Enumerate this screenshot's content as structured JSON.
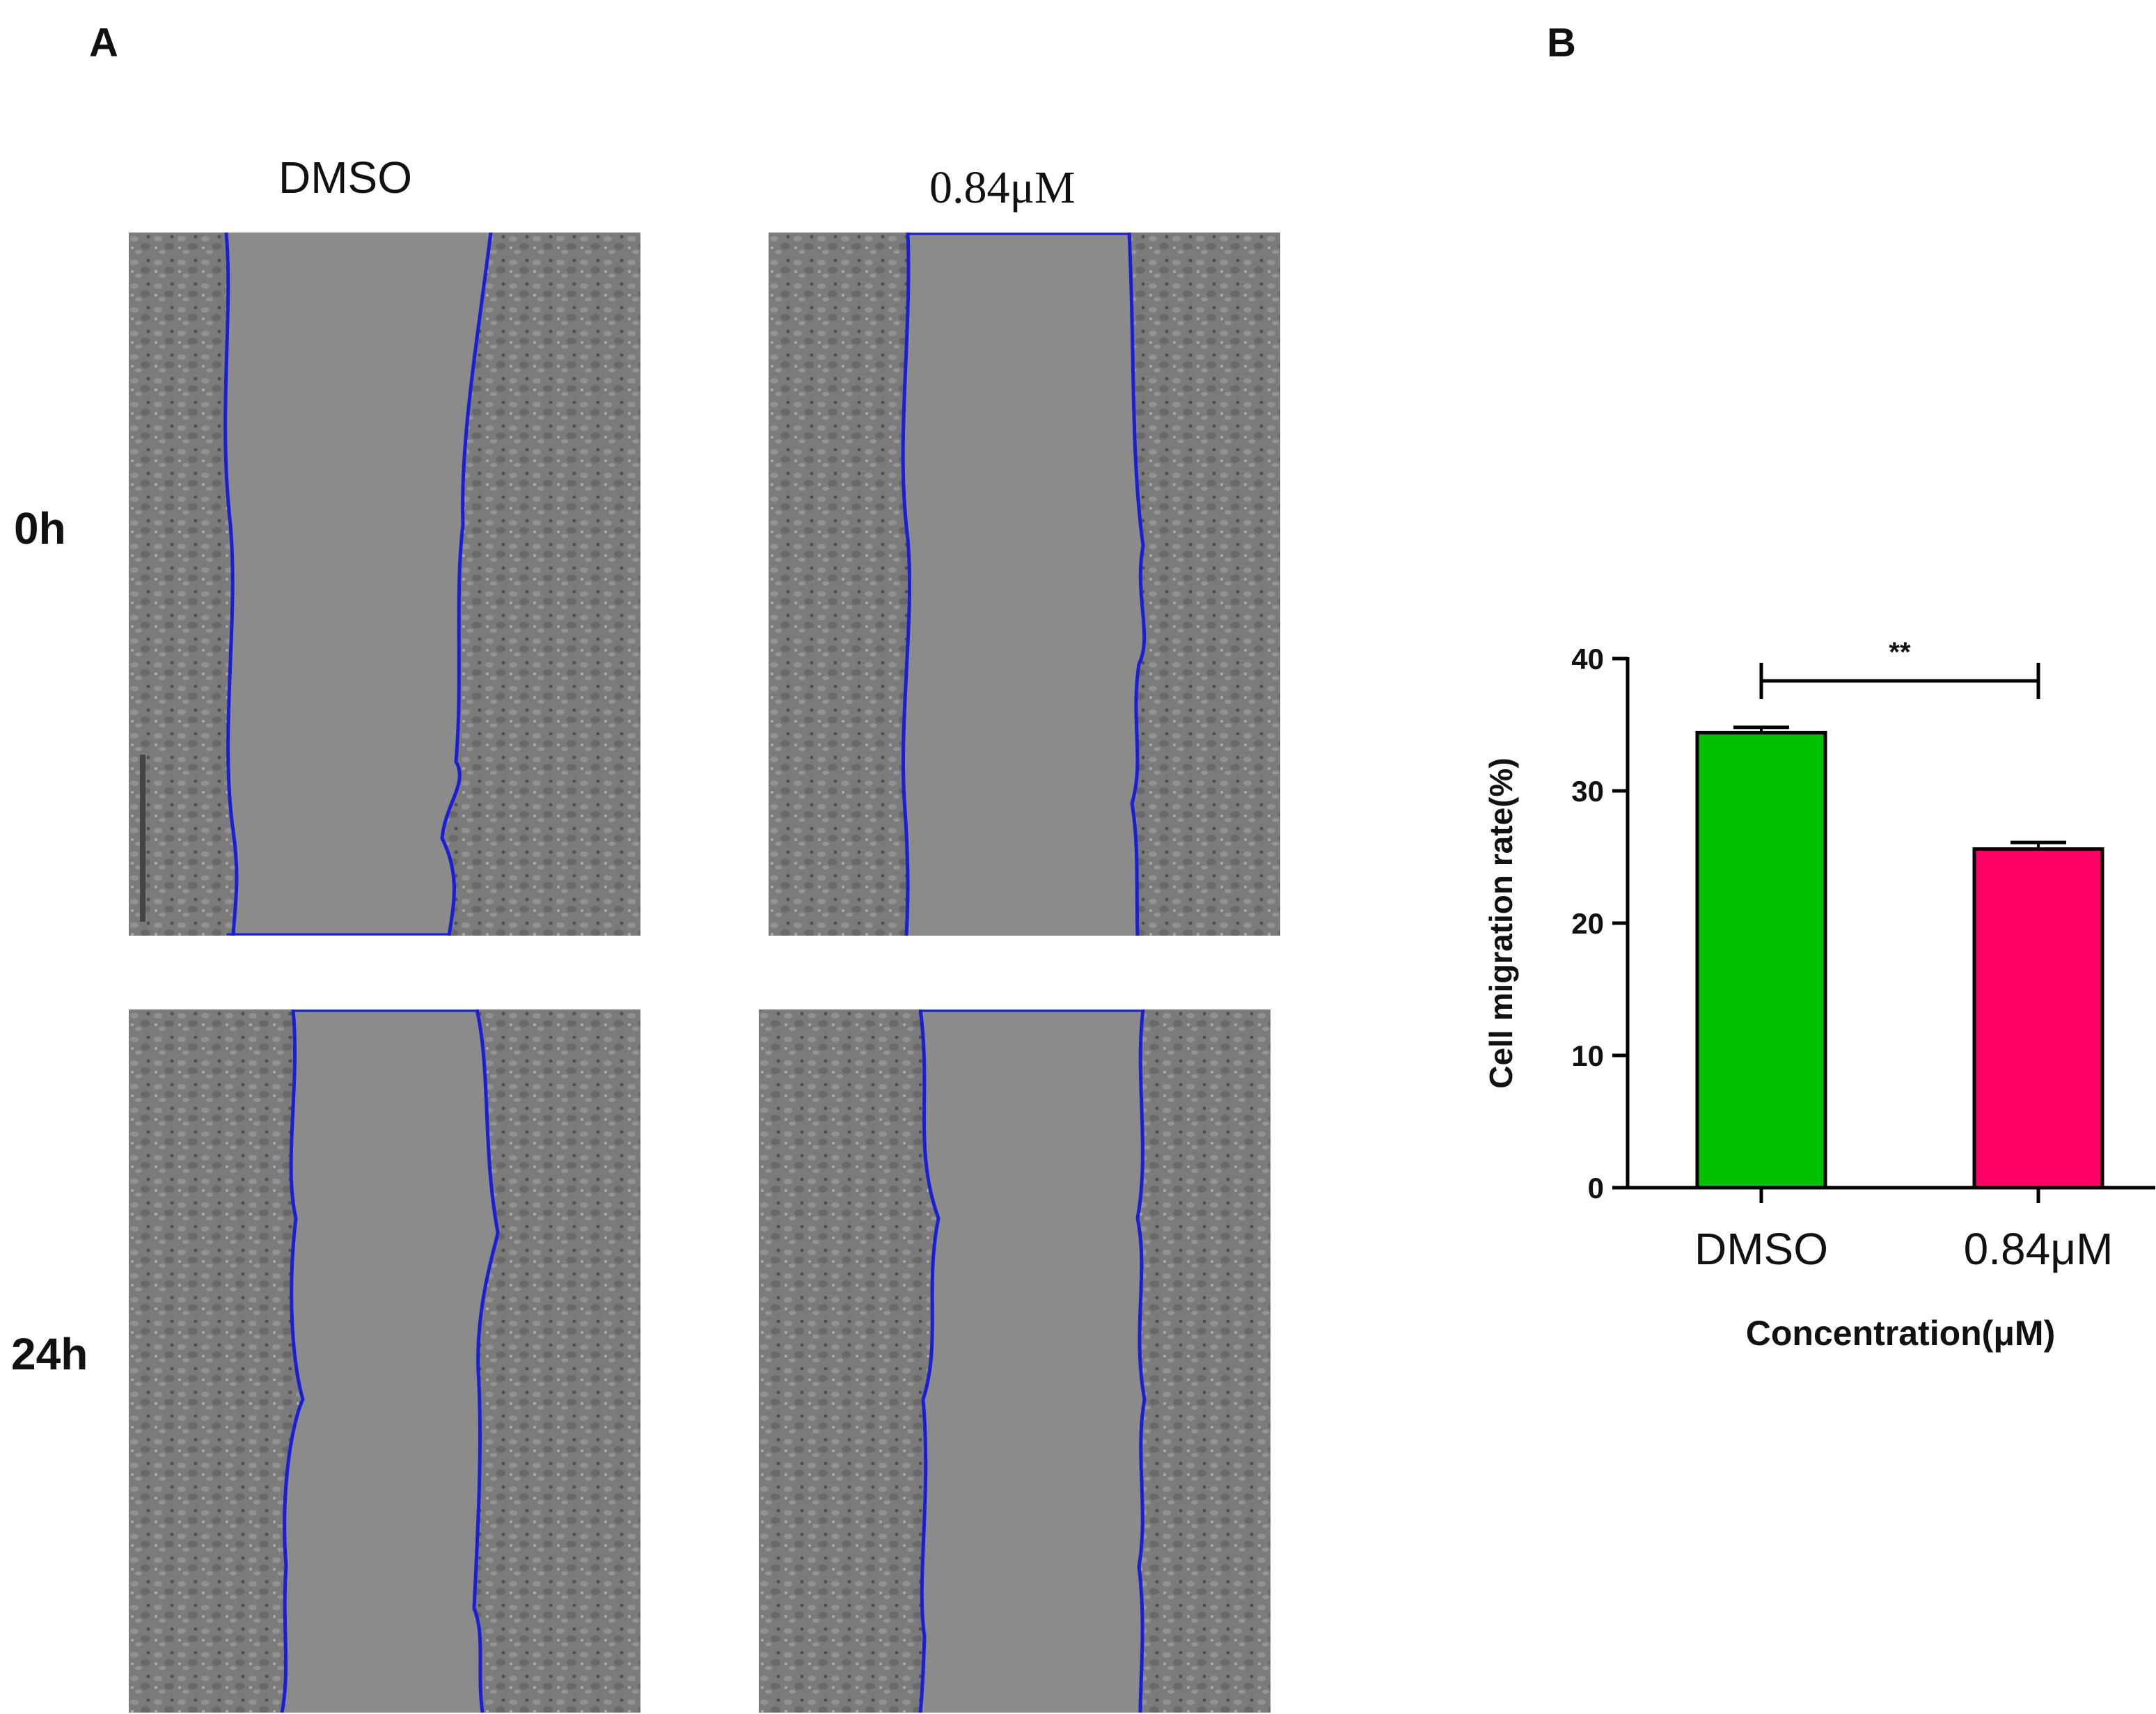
{
  "panels": {
    "a": "A",
    "b": "B"
  },
  "columns": {
    "left": "DMSO",
    "right": "0.84μM"
  },
  "rows": {
    "top": "0h",
    "bottom": "24h"
  },
  "colors": {
    "wound_edge": "#1a1fd6",
    "cell_field": "#7d7d7d",
    "gap_area": "#8b8b8b",
    "bar_dmso": "#00c000",
    "bar_treated": "#ff0066"
  },
  "chart_data": {
    "type": "bar",
    "categories": [
      "DMSO",
      "0.84μM"
    ],
    "values": [
      34.4,
      25.6
    ],
    "errors": [
      0.4,
      0.5
    ],
    "colors": [
      "#00c000",
      "#ff0066"
    ],
    "ylabel": "Cell migration rate(%)",
    "xlabel": "Concentration(μM)",
    "ylim": [
      0,
      40
    ],
    "yticks": [
      0,
      10,
      20,
      30,
      40
    ],
    "significance": {
      "label": "**",
      "between": [
        0,
        1
      ]
    },
    "grid": false,
    "legend": "none"
  }
}
